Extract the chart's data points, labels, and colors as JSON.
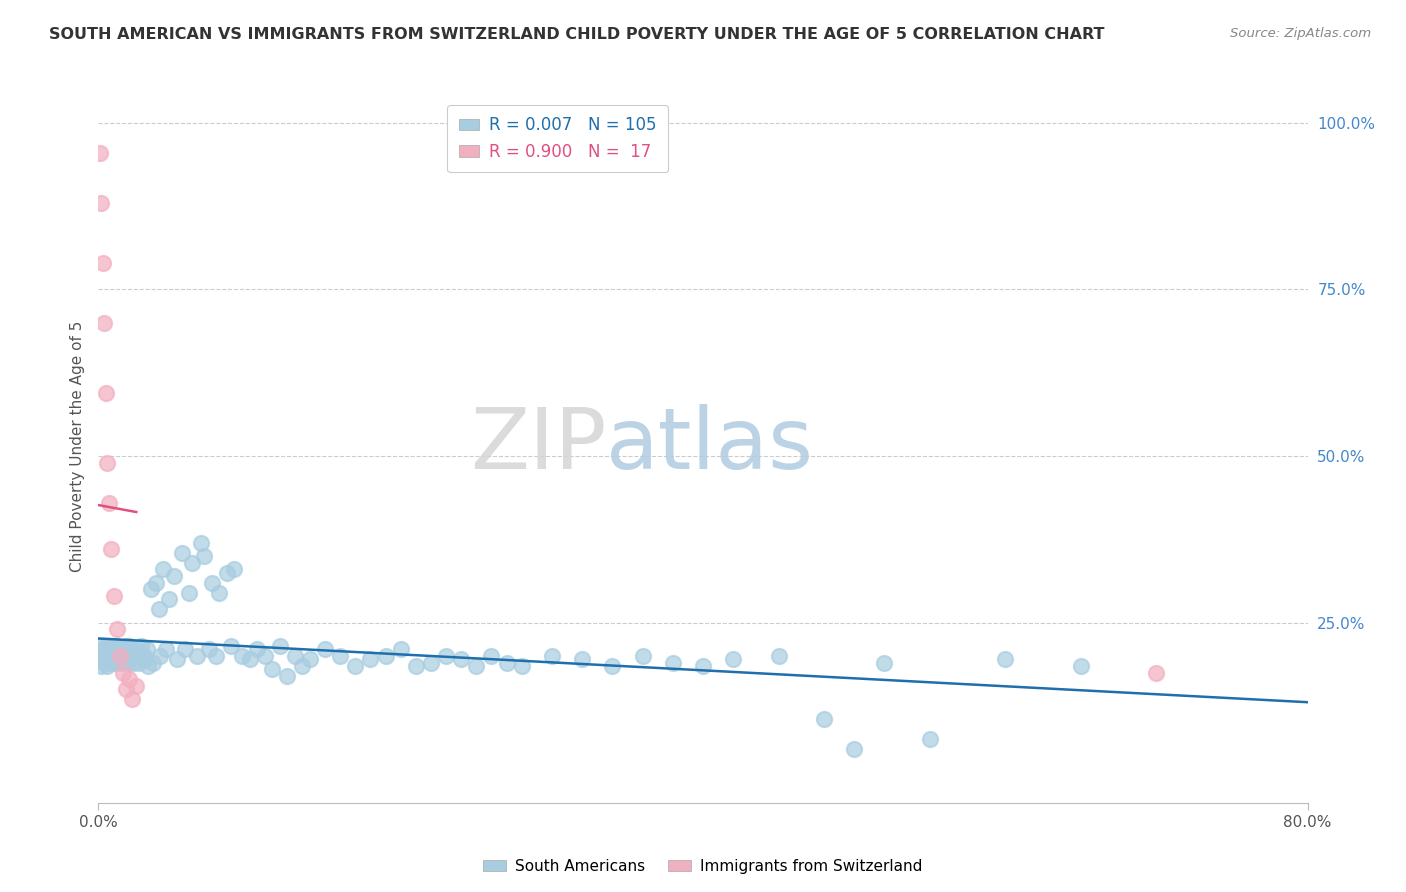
{
  "title": "SOUTH AMERICAN VS IMMIGRANTS FROM SWITZERLAND CHILD POVERTY UNDER THE AGE OF 5 CORRELATION CHART",
  "source": "Source: ZipAtlas.com",
  "ylabel": "Child Poverty Under the Age of 5",
  "xlim": [
    0,
    0.8
  ],
  "ylim": [
    -0.02,
    1.05
  ],
  "blue_color": "#a8cce0",
  "blue_line_color": "#1f6fad",
  "pink_color": "#f2afc0",
  "pink_line_color": "#e05080",
  "legend_R1_text": "R = 0.007   N = 105",
  "legend_R2_text": "R = 0.900   N =  17",
  "watermark_zip": "ZIP",
  "watermark_atlas": "atlas",
  "south_american_x": [
    0.001,
    0.002,
    0.002,
    0.003,
    0.003,
    0.004,
    0.004,
    0.005,
    0.005,
    0.006,
    0.006,
    0.007,
    0.007,
    0.008,
    0.008,
    0.009,
    0.009,
    0.01,
    0.01,
    0.011,
    0.012,
    0.012,
    0.013,
    0.014,
    0.015,
    0.015,
    0.016,
    0.017,
    0.018,
    0.019,
    0.02,
    0.02,
    0.021,
    0.022,
    0.023,
    0.025,
    0.026,
    0.027,
    0.028,
    0.03,
    0.031,
    0.032,
    0.033,
    0.035,
    0.036,
    0.038,
    0.04,
    0.041,
    0.043,
    0.045,
    0.047,
    0.05,
    0.052,
    0.055,
    0.057,
    0.06,
    0.062,
    0.065,
    0.068,
    0.07,
    0.073,
    0.075,
    0.078,
    0.08,
    0.085,
    0.088,
    0.09,
    0.095,
    0.1,
    0.105,
    0.11,
    0.115,
    0.12,
    0.125,
    0.13,
    0.135,
    0.14,
    0.15,
    0.16,
    0.17,
    0.18,
    0.19,
    0.2,
    0.21,
    0.22,
    0.23,
    0.24,
    0.25,
    0.26,
    0.27,
    0.28,
    0.3,
    0.32,
    0.34,
    0.36,
    0.38,
    0.4,
    0.42,
    0.45,
    0.48,
    0.5,
    0.52,
    0.55,
    0.6,
    0.65
  ],
  "south_american_y": [
    0.195,
    0.215,
    0.185,
    0.205,
    0.2,
    0.19,
    0.21,
    0.195,
    0.215,
    0.2,
    0.185,
    0.205,
    0.195,
    0.21,
    0.19,
    0.2,
    0.215,
    0.195,
    0.205,
    0.19,
    0.2,
    0.215,
    0.195,
    0.205,
    0.19,
    0.21,
    0.195,
    0.2,
    0.215,
    0.19,
    0.2,
    0.215,
    0.195,
    0.205,
    0.19,
    0.21,
    0.2,
    0.19,
    0.215,
    0.2,
    0.195,
    0.21,
    0.185,
    0.3,
    0.19,
    0.31,
    0.27,
    0.2,
    0.33,
    0.21,
    0.285,
    0.32,
    0.195,
    0.355,
    0.21,
    0.295,
    0.34,
    0.2,
    0.37,
    0.35,
    0.21,
    0.31,
    0.2,
    0.295,
    0.325,
    0.215,
    0.33,
    0.2,
    0.195,
    0.21,
    0.2,
    0.18,
    0.215,
    0.17,
    0.2,
    0.185,
    0.195,
    0.21,
    0.2,
    0.185,
    0.195,
    0.2,
    0.21,
    0.185,
    0.19,
    0.2,
    0.195,
    0.185,
    0.2,
    0.19,
    0.185,
    0.2,
    0.195,
    0.185,
    0.2,
    0.19,
    0.185,
    0.195,
    0.2,
    0.105,
    0.06,
    0.19,
    0.075,
    0.195,
    0.185
  ],
  "swiss_x": [
    0.001,
    0.002,
    0.003,
    0.004,
    0.005,
    0.006,
    0.007,
    0.008,
    0.01,
    0.012,
    0.014,
    0.016,
    0.018,
    0.02,
    0.022,
    0.025,
    0.7
  ],
  "swiss_y": [
    0.955,
    0.88,
    0.79,
    0.7,
    0.595,
    0.49,
    0.43,
    0.36,
    0.29,
    0.24,
    0.2,
    0.175,
    0.15,
    0.165,
    0.135,
    0.155,
    0.175
  ]
}
